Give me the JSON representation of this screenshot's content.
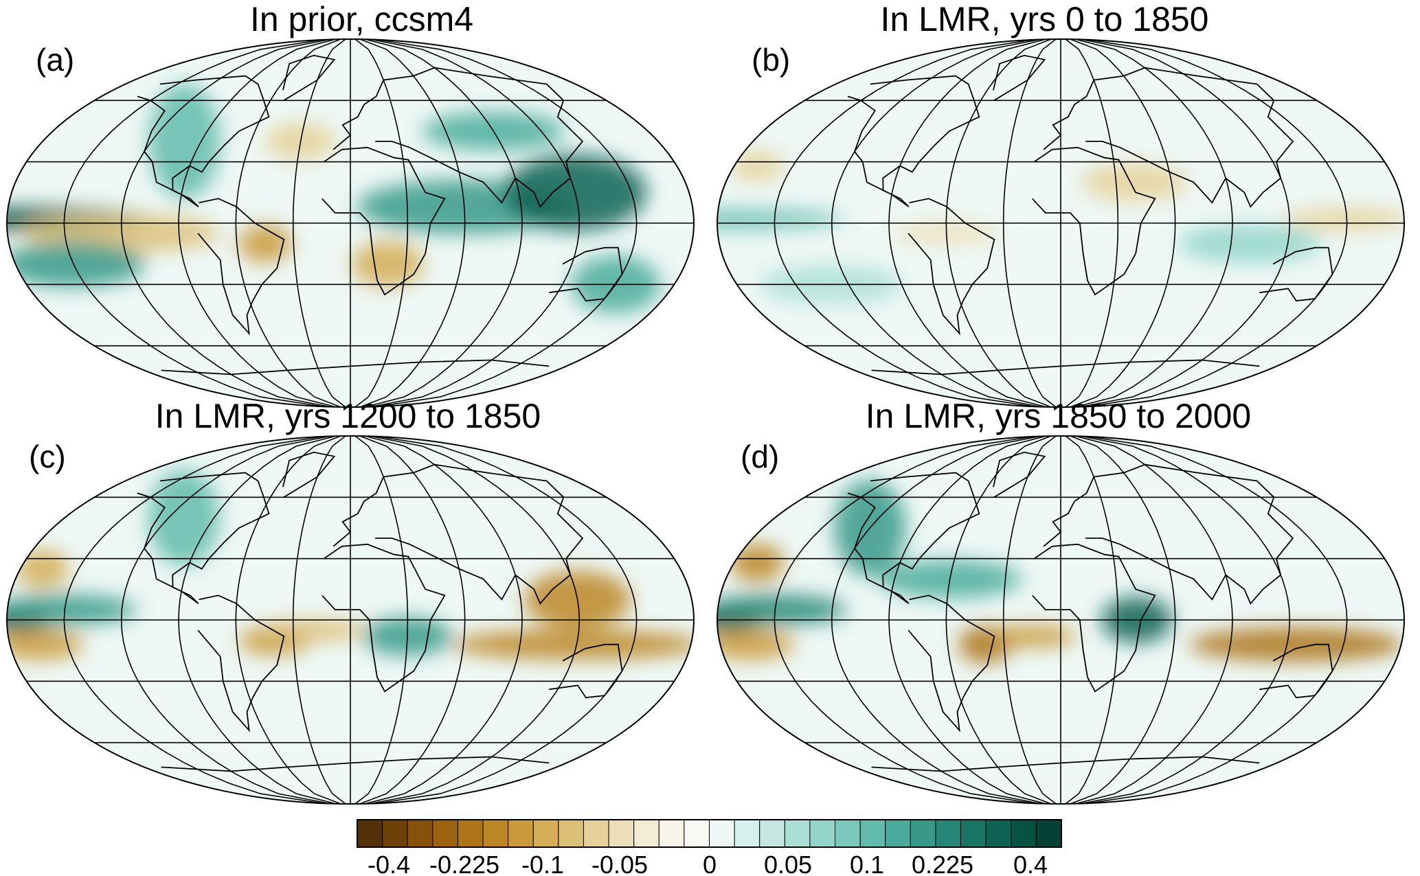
{
  "panels": [
    {
      "label": "(a)",
      "title": "In prior, ccsm4"
    },
    {
      "label": "(b)",
      "title": "In LMR, yrs 0 to 1850"
    },
    {
      "label": "(c)",
      "title": "In LMR, yrs 1200 to 1850"
    },
    {
      "label": "(d)",
      "title": "In LMR, yrs 1850 to 2000"
    }
  ],
  "colorbar": {
    "tick_labels": [
      "-0.4",
      "-0.225",
      "-0.1",
      "-0.05",
      "0",
      "0.05",
      "0.1",
      "0.225",
      "0.4"
    ],
    "colors": [
      "#553108",
      "#6e4108",
      "#865109",
      "#9c620e",
      "#ad7419",
      "#bc8626",
      "#c99a3b",
      "#d4ad54",
      "#ddc078",
      "#e6d19a",
      "#ede0b8",
      "#f4ecd3",
      "#f8f4e9",
      "#f9f8f2",
      "#eef8f6",
      "#d8f0eb",
      "#c4e8e1",
      "#abdfd6",
      "#93d5ca",
      "#7ac9bc",
      "#61bbad",
      "#4aab9c",
      "#36998a",
      "#268677",
      "#1a7566",
      "#0f6355",
      "#075243",
      "#034235"
    ]
  }
}
